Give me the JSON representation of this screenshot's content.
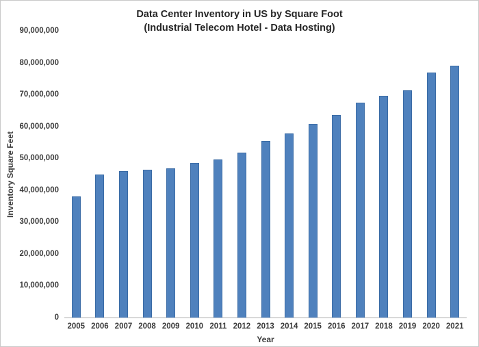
{
  "figure": {
    "title_line1": "Data Center Inventory in US by Square Foot",
    "title_line2": "(Industrial Telecom Hotel - Data Hosting)"
  },
  "chart_data": {
    "type": "bar",
    "title": "Data Center Inventory in US by Square Foot (Industrial Telecom Hotel - Data Hosting)",
    "xlabel": "Year",
    "ylabel": "Inventory Square Feet",
    "categories": [
      "2005",
      "2006",
      "2007",
      "2008",
      "2009",
      "2010",
      "2011",
      "2012",
      "2013",
      "2014",
      "2015",
      "2016",
      "2017",
      "2018",
      "2019",
      "2020",
      "2021"
    ],
    "values": [
      38000000,
      45000000,
      46000000,
      46500000,
      46800000,
      48600000,
      49700000,
      51700000,
      55500000,
      57800000,
      60800000,
      63500000,
      67500000,
      69600000,
      71400000,
      76900000,
      79000000
    ],
    "ylim": [
      0,
      90000000
    ],
    "ytick_values": [
      0,
      10000000,
      20000000,
      30000000,
      40000000,
      50000000,
      60000000,
      70000000,
      80000000,
      90000000
    ],
    "ytick_labels": [
      "0",
      "10,000,000",
      "20,000,000",
      "30,000,000",
      "40,000,000",
      "50,000,000",
      "60,000,000",
      "70,000,000",
      "80,000,000",
      "90,000,000"
    ],
    "grid": false,
    "legend": null,
    "bar_color": "#4f81bd",
    "bar_border_color": "#3a6ba5",
    "axis_line_color": "#d9d9d9",
    "frame_color": "#c9c9c9"
  }
}
